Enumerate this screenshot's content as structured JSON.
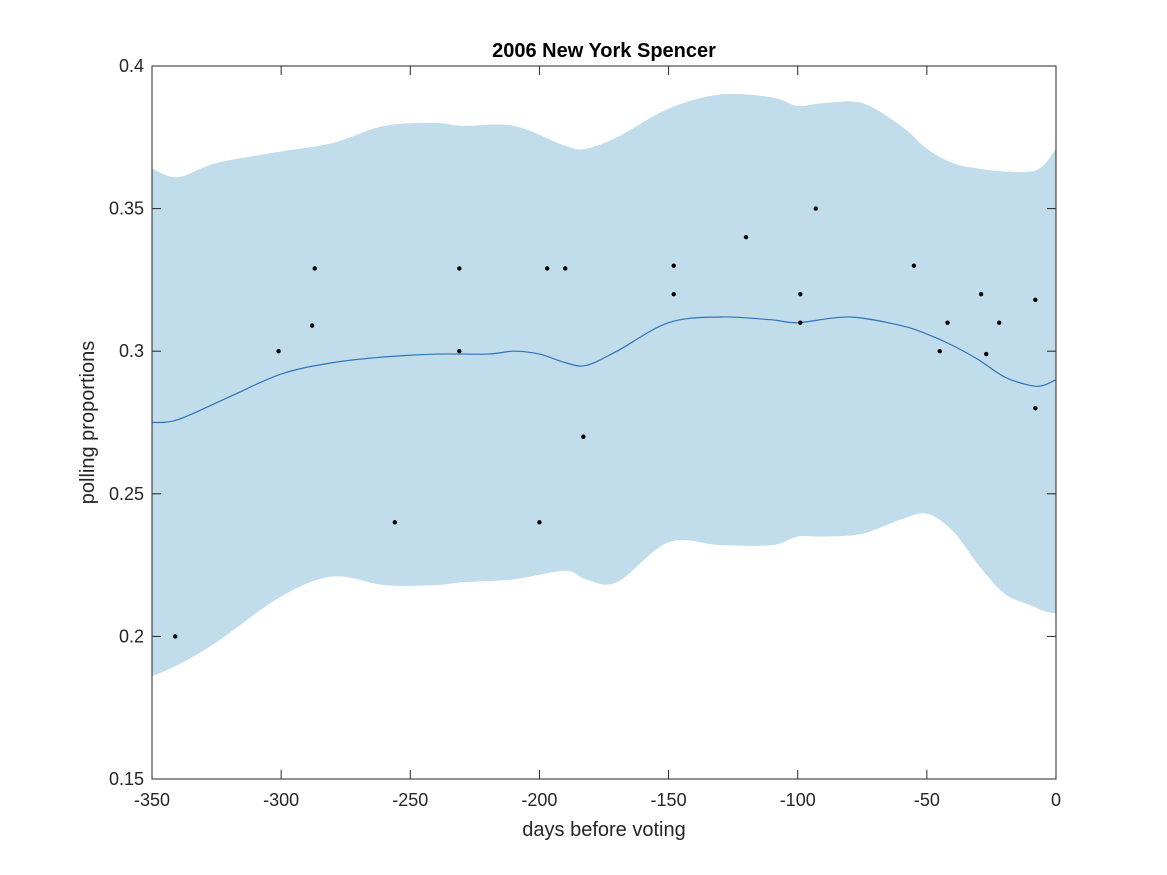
{
  "chart_data": {
    "type": "line",
    "title": "2006 New York Spencer",
    "xlabel": "days before voting",
    "ylabel": "polling proportions",
    "xlim": [
      -350,
      0
    ],
    "ylim": [
      0.15,
      0.4
    ],
    "xticks": [
      -350,
      -300,
      -250,
      -200,
      -150,
      -100,
      -50,
      0
    ],
    "yticks": [
      0.15,
      0.2,
      0.25,
      0.3,
      0.35,
      0.4
    ],
    "xtick_labels": [
      "-350",
      "-300",
      "-250",
      "-200",
      "-150",
      "-100",
      "-50",
      "0"
    ],
    "ytick_labels": [
      "0.15",
      "0.2",
      "0.25",
      "0.3",
      "0.35",
      "0.4"
    ],
    "grid": false,
    "colors": {
      "band": "#c1dcea",
      "line": "#2f73b8",
      "points": "#000000",
      "axes": "#262626"
    },
    "band": {
      "x": [
        -350,
        -340,
        -325,
        -300,
        -280,
        -260,
        -240,
        -230,
        -210,
        -190,
        -182,
        -170,
        -150,
        -130,
        -110,
        -100,
        -90,
        -75,
        -60,
        -50,
        -40,
        -30,
        -20,
        -10,
        -5,
        0
      ],
      "upper": [
        0.364,
        0.361,
        0.366,
        0.37,
        0.373,
        0.379,
        0.38,
        0.379,
        0.379,
        0.372,
        0.371,
        0.375,
        0.385,
        0.39,
        0.389,
        0.386,
        0.387,
        0.387,
        0.379,
        0.371,
        0.366,
        0.364,
        0.363,
        0.363,
        0.365,
        0.371
      ],
      "lower": [
        0.186,
        0.19,
        0.198,
        0.214,
        0.221,
        0.218,
        0.218,
        0.219,
        0.22,
        0.223,
        0.22,
        0.219,
        0.233,
        0.232,
        0.232,
        0.235,
        0.235,
        0.236,
        0.241,
        0.243,
        0.237,
        0.225,
        0.215,
        0.211,
        0.209,
        0.208
      ]
    },
    "line": {
      "name": "",
      "x": [
        -350,
        -340,
        -320,
        -300,
        -280,
        -260,
        -240,
        -220,
        -210,
        -200,
        -190,
        -182,
        -170,
        -150,
        -130,
        -110,
        -100,
        -80,
        -60,
        -50,
        -40,
        -30,
        -20,
        -10,
        -5,
        0
      ],
      "y": [
        0.275,
        0.276,
        0.284,
        0.292,
        0.296,
        0.298,
        0.299,
        0.299,
        0.3,
        0.299,
        0.296,
        0.295,
        0.3,
        0.31,
        0.312,
        0.311,
        0.31,
        0.312,
        0.309,
        0.306,
        0.302,
        0.297,
        0.291,
        0.288,
        0.288,
        0.29
      ]
    },
    "points": [
      {
        "x": -341,
        "y": 0.2
      },
      {
        "x": -301,
        "y": 0.3
      },
      {
        "x": -288,
        "y": 0.309
      },
      {
        "x": -287,
        "y": 0.329
      },
      {
        "x": -256,
        "y": 0.24
      },
      {
        "x": -231,
        "y": 0.329
      },
      {
        "x": -231,
        "y": 0.3
      },
      {
        "x": -200,
        "y": 0.24
      },
      {
        "x": -197,
        "y": 0.329
      },
      {
        "x": -190,
        "y": 0.329
      },
      {
        "x": -183,
        "y": 0.27
      },
      {
        "x": -148,
        "y": 0.33
      },
      {
        "x": -148,
        "y": 0.32
      },
      {
        "x": -120,
        "y": 0.34
      },
      {
        "x": -99,
        "y": 0.32
      },
      {
        "x": -99,
        "y": 0.31
      },
      {
        "x": -93,
        "y": 0.35
      },
      {
        "x": -55,
        "y": 0.33
      },
      {
        "x": -45,
        "y": 0.3
      },
      {
        "x": -42,
        "y": 0.31
      },
      {
        "x": -29,
        "y": 0.32
      },
      {
        "x": -27,
        "y": 0.299
      },
      {
        "x": -22,
        "y": 0.31
      },
      {
        "x": -8,
        "y": 0.318
      },
      {
        "x": -8,
        "y": 0.28
      }
    ]
  }
}
